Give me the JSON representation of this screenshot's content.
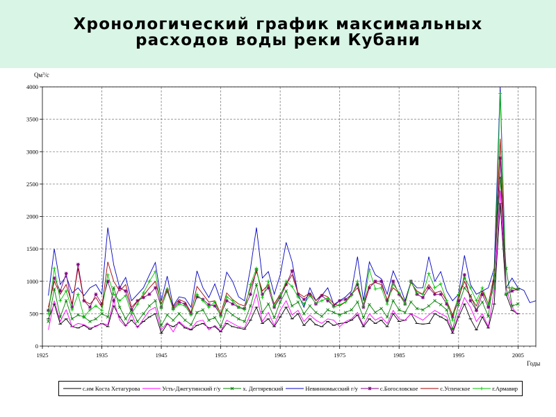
{
  "header": {
    "title_line1": "Хронологический график максимальных",
    "title_line2": "расходов воды реки Кубани"
  },
  "colors": {
    "title_band": "#d8f5e6",
    "grid": "#7f7f7f"
  },
  "chart_data": {
    "type": "line",
    "title": "Хронологический график максимальных расходов воды реки Кубани",
    "ylabel": "Qм³/с",
    "ylabel_base": "Qм",
    "ylabel_sup": "3",
    "ylabel_tail": "/с",
    "xlabel": "Годы",
    "xlim": [
      1925,
      2008
    ],
    "ylim": [
      0,
      4000
    ],
    "x_ticks": [
      1925,
      1935,
      1945,
      1955,
      1965,
      1975,
      1985,
      1995,
      2005
    ],
    "y_ticks": [
      0,
      500,
      1000,
      1500,
      2000,
      2500,
      3000,
      3500,
      4000
    ],
    "grid": true,
    "legend_position": "bottom",
    "series": [
      {
        "name": "с.им Коста Хетагурова",
        "color": "#000000",
        "marker": "dash",
        "x": [
          1926,
          1927,
          1928,
          1929,
          1930,
          1931,
          1932,
          1933,
          1934,
          1935,
          1936,
          1937,
          1938,
          1939,
          1940,
          1941,
          1942,
          1943,
          1944,
          1945,
          1946,
          1947,
          1948,
          1949,
          1950,
          1951,
          1952,
          1953,
          1954,
          1955,
          1956,
          1957,
          1958,
          1959,
          1960,
          1961,
          1962,
          1963,
          1964,
          1965,
          1966,
          1967,
          1968,
          1969,
          1970,
          1971,
          1972,
          1973,
          1974,
          1975,
          1976,
          1977,
          1978,
          1979,
          1980,
          1981,
          1982,
          1983,
          1984,
          1985,
          1986,
          1987,
          1988,
          1989,
          1990,
          1991,
          1992,
          1993,
          1994,
          1995,
          1996,
          1997,
          1998,
          1999,
          2000,
          2001,
          2002,
          2003,
          2004,
          2005
        ],
        "y": [
          420,
          650,
          340,
          420,
          300,
          280,
          320,
          260,
          310,
          350,
          300,
          620,
          450,
          320,
          400,
          300,
          380,
          450,
          500,
          200,
          340,
          300,
          360,
          280,
          250,
          320,
          350,
          280,
          300,
          220,
          350,
          300,
          280,
          260,
          400,
          600,
          350,
          420,
          300,
          450,
          600,
          420,
          500,
          320,
          420,
          330,
          300,
          380,
          320,
          350,
          360,
          400,
          480,
          300,
          420,
          350,
          400,
          300,
          500,
          380,
          400,
          500,
          350,
          340,
          350,
          500,
          450,
          400,
          200,
          450,
          650,
          420,
          250,
          450,
          280,
          650,
          2200,
          800,
          550,
          500
        ]
      },
      {
        "name": "Усть-Джегутинский г/у",
        "color": "#ff00ff",
        "marker": "none",
        "x": [
          1926,
          1927,
          1928,
          1929,
          1930,
          1931,
          1932,
          1933,
          1934,
          1935,
          1936,
          1937,
          1938,
          1939,
          1940,
          1941,
          1942,
          1943,
          1944,
          1945,
          1946,
          1947,
          1948,
          1949,
          1950,
          1951,
          1952,
          1953,
          1954,
          1955,
          1956,
          1957,
          1958,
          1959,
          1960,
          1961,
          1962,
          1963,
          1964,
          1965,
          1966,
          1967,
          1968,
          1969,
          1970,
          1971,
          1972,
          1973,
          1974,
          1975,
          1976,
          1977,
          1978,
          1979,
          1980,
          1981,
          1982,
          1983,
          1984,
          1985,
          1986,
          1987,
          1988,
          1989,
          1990,
          1991,
          1992,
          1993,
          1994,
          1995,
          1996,
          1997,
          1998,
          1999,
          2000,
          2001,
          2002,
          2003,
          2004,
          2005
        ],
        "y": [
          250,
          700,
          380,
          560,
          300,
          350,
          330,
          280,
          300,
          350,
          330,
          700,
          400,
          300,
          500,
          280,
          420,
          550,
          600,
          250,
          360,
          220,
          380,
          300,
          260,
          380,
          400,
          250,
          320,
          230,
          400,
          350,
          300,
          280,
          500,
          800,
          380,
          520,
          320,
          550,
          700,
          480,
          550,
          380,
          480,
          400,
          350,
          420,
          400,
          300,
          380,
          420,
          520,
          320,
          500,
          400,
          450,
          350,
          550,
          420,
          400,
          500,
          450,
          400,
          480,
          550,
          500,
          450,
          220,
          500,
          750,
          600,
          380,
          500,
          300,
          850,
          2400,
          900,
          600,
          480
        ]
      },
      {
        "name": "х. Дегтяревский",
        "color": "#008000",
        "marker": "cross",
        "x": [
          1926,
          1927,
          1928,
          1929,
          1930,
          1931,
          1932,
          1933,
          1934,
          1935,
          1936,
          1937,
          1938,
          1939,
          1940,
          1941,
          1942,
          1943,
          1944,
          1945,
          1946,
          1947,
          1948,
          1949,
          1950,
          1951,
          1952,
          1953,
          1954,
          1955,
          1956,
          1957,
          1958,
          1959,
          1960,
          1961,
          1962,
          1963,
          1964,
          1965,
          1966,
          1967,
          1968,
          1969,
          1970,
          1971,
          1972,
          1973,
          1974,
          1975,
          1976,
          1977,
          1978,
          1979,
          1980,
          1981,
          1982,
          1983,
          1984,
          1985,
          1986,
          1987,
          1988,
          1989,
          1990,
          1991,
          1992,
          1993,
          1994,
          1995,
          1996,
          1997,
          1998,
          1999,
          2000,
          2001,
          2002,
          2003,
          2004,
          2005
        ],
        "y": [
          380,
          880,
          450,
          700,
          420,
          480,
          450,
          380,
          420,
          500,
          450,
          900,
          600,
          420,
          560,
          380,
          500,
          620,
          700,
          320,
          480,
          400,
          500,
          400,
          330,
          520,
          560,
          400,
          440,
          300,
          560,
          480,
          420,
          380,
          620,
          950,
          520,
          650,
          440,
          680,
          850,
          620,
          680,
          500,
          620,
          520,
          460,
          560,
          520,
          480,
          520,
          560,
          680,
          440,
          640,
          520,
          580,
          450,
          700,
          560,
          520,
          680,
          580,
          560,
          620,
          700,
          640,
          560,
          260,
          640,
          900,
          780,
          560,
          680,
          460,
          1100,
          2600,
          1200,
          620,
          650
        ]
      },
      {
        "name": "Невинномысский г/у",
        "color": "#0000c0",
        "marker": "none",
        "x": [
          1926,
          1927,
          1928,
          1929,
          1930,
          1931,
          1932,
          1933,
          1934,
          1935,
          1936,
          1937,
          1938,
          1939,
          1940,
          1941,
          1942,
          1943,
          1944,
          1945,
          1946,
          1947,
          1948,
          1949,
          1950,
          1951,
          1952,
          1953,
          1954,
          1955,
          1956,
          1957,
          1958,
          1959,
          1960,
          1961,
          1962,
          1963,
          1964,
          1965,
          1966,
          1967,
          1968,
          1969,
          1970,
          1971,
          1972,
          1973,
          1974,
          1975,
          1976,
          1977,
          1978,
          1979,
          1980,
          1981,
          1982,
          1983,
          1984,
          1985,
          1986,
          1987,
          1988,
          1989,
          1990,
          1991,
          1992,
          1993,
          1994,
          1995,
          1996,
          1997,
          1998,
          1999,
          2000,
          2001,
          2002,
          2003,
          2004,
          2005,
          2006,
          2007,
          2008
        ],
        "y": [
          780,
          1500,
          950,
          1080,
          820,
          900,
          780,
          900,
          950,
          800,
          1830,
          1250,
          900,
          1060,
          700,
          800,
          900,
          1100,
          1290,
          700,
          1080,
          620,
          760,
          740,
          600,
          1160,
          900,
          750,
          960,
          700,
          1140,
          1000,
          760,
          700,
          1200,
          1830,
          1050,
          1150,
          800,
          1100,
          1600,
          1300,
          800,
          600,
          900,
          700,
          780,
          900,
          640,
          700,
          760,
          850,
          1380,
          700,
          1300,
          1100,
          1040,
          800,
          1160,
          950,
          700,
          1000,
          900,
          900,
          1380,
          1000,
          1150,
          850,
          700,
          800,
          1400,
          950,
          800,
          850,
          900,
          1200,
          4000,
          900,
          1050,
          900,
          860,
          670,
          700
        ]
      },
      {
        "name": "с.Богословское",
        "color": "#800080",
        "marker": "star",
        "x": [
          1926,
          1927,
          1928,
          1929,
          1930,
          1931,
          1932,
          1933,
          1934,
          1935,
          1936,
          1937,
          1938,
          1939,
          1940,
          1941,
          1942,
          1943,
          1944,
          1945,
          1946,
          1947,
          1948,
          1949,
          1950,
          1951,
          1952,
          1953,
          1954,
          1955,
          1956,
          1957,
          1958,
          1959,
          1960,
          1961,
          1962,
          1963,
          1964,
          1965,
          1966,
          1967,
          1968,
          1969,
          1970,
          1971,
          1972,
          1973,
          1974,
          1975,
          1976,
          1977,
          1978,
          1979,
          1980,
          1981,
          1982,
          1983,
          1984,
          1985,
          1986,
          1987,
          1988,
          1989,
          1990,
          1991,
          1992,
          1993,
          1994,
          1995,
          1996,
          1997,
          1998,
          1999,
          2000,
          2001,
          2002,
          2003,
          2004,
          2005
        ],
        "y": [
          550,
          1050,
          850,
          1120,
          600,
          1260,
          700,
          600,
          800,
          650,
          1000,
          700,
          900,
          850,
          560,
          700,
          750,
          800,
          900,
          600,
          850,
          580,
          680,
          650,
          500,
          760,
          720,
          640,
          620,
          480,
          700,
          650,
          600,
          580,
          800,
          1180,
          800,
          900,
          600,
          750,
          950,
          1160,
          800,
          720,
          800,
          650,
          780,
          700,
          620,
          700,
          720,
          800,
          950,
          600,
          900,
          1000,
          1000,
          700,
          1000,
          800,
          650,
          1000,
          800,
          750,
          900,
          800,
          800,
          650,
          450,
          700,
          1100,
          700,
          550,
          800,
          600,
          1000,
          2900,
          800,
          850,
          880
        ]
      },
      {
        "name": "с.Успенское",
        "color": "#a00000",
        "marker": "none",
        "x": [
          1926,
          1927,
          1928,
          1929,
          1930,
          1931,
          1932,
          1933,
          1934,
          1935,
          1936,
          1937,
          1938,
          1939,
          1940,
          1941,
          1942,
          1943,
          1944,
          1945,
          1946,
          1947,
          1948,
          1949,
          1950,
          1951,
          1952,
          1953,
          1954,
          1955,
          1956,
          1957,
          1958,
          1959,
          1960,
          1961,
          1962,
          1963,
          1964,
          1965,
          1966,
          1967,
          1968,
          1969,
          1970,
          1971,
          1972,
          1973,
          1974,
          1975,
          1976,
          1977,
          1978,
          1979,
          1980,
          1981,
          1982,
          1983,
          1984,
          1985,
          1986,
          1987,
          1988,
          1989,
          1990,
          1991,
          1992,
          1993,
          1994,
          1995,
          1996,
          1997,
          1998,
          1999,
          2000,
          2001,
          2002,
          2003,
          2004,
          2005
        ],
        "y": [
          600,
          1000,
          800,
          950,
          650,
          1200,
          700,
          650,
          750,
          600,
          1300,
          1000,
          850,
          950,
          600,
          700,
          780,
          900,
          1000,
          650,
          900,
          600,
          720,
          680,
          520,
          920,
          800,
          680,
          700,
          500,
          820,
          720,
          650,
          620,
          900,
          1150,
          850,
          950,
          650,
          800,
          950,
          1100,
          820,
          760,
          820,
          700,
          800,
          760,
          650,
          620,
          680,
          800,
          900,
          640,
          940,
          980,
          950,
          720,
          900,
          820,
          680,
          980,
          850,
          800,
          950,
          820,
          850,
          700,
          480,
          760,
          1000,
          760,
          620,
          850,
          650,
          1100,
          3200,
          900,
          900,
          860
        ]
      },
      {
        "name": "г.Армавир",
        "color": "#00c000",
        "marker": "plus",
        "x": [
          1926,
          1927,
          1928,
          1929,
          1930,
          1931,
          1932,
          1933,
          1934,
          1935,
          1936,
          1937,
          1938,
          1939,
          1940,
          1941,
          1942,
          1943,
          1944,
          1945,
          1946,
          1947,
          1948,
          1949,
          1950,
          1951,
          1952,
          1953,
          1954,
          1955,
          1956,
          1957,
          1958,
          1959,
          1960,
          1961,
          1962,
          1963,
          1964,
          1965,
          1966,
          1967,
          1968,
          1969,
          1970,
          1971,
          1972,
          1973,
          1974,
          1975,
          1976,
          1977,
          1978,
          1979,
          1980,
          1981,
          1982,
          1983,
          1984,
          1985,
          1986,
          1987,
          1988,
          1989,
          1990,
          1991,
          1992,
          1993,
          1994,
          1995,
          1996,
          1997,
          1998,
          1999,
          2000,
          2001,
          2002,
          2003,
          2004,
          2005
        ],
        "y": [
          500,
          1200,
          700,
          850,
          560,
          800,
          450,
          560,
          620,
          550,
          1100,
          800,
          700,
          780,
          500,
          650,
          820,
          1000,
          1150,
          580,
          880,
          560,
          650,
          620,
          480,
          800,
          700,
          600,
          680,
          450,
          760,
          700,
          600,
          560,
          950,
          1200,
          750,
          1000,
          620,
          780,
          1000,
          920,
          760,
          650,
          780,
          660,
          700,
          740,
          600,
          640,
          680,
          780,
          1000,
          620,
          1180,
          880,
          900,
          650,
          960,
          820,
          650,
          1000,
          820,
          800,
          1120,
          900,
          960,
          700,
          400,
          800,
          1050,
          900,
          700,
          900,
          650,
          900,
          3900,
          800,
          900,
          880
        ]
      }
    ]
  }
}
